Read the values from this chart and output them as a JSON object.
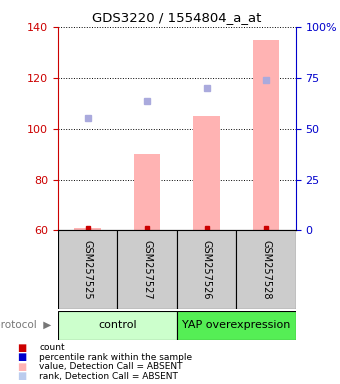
{
  "title": "GDS3220 / 1554804_a_at",
  "samples": [
    "GSM257525",
    "GSM257527",
    "GSM257526",
    "GSM257528"
  ],
  "bar_values": [
    61,
    90,
    105,
    135
  ],
  "bar_color": "#ffb3b3",
  "count_values": [
    61,
    61,
    61,
    61
  ],
  "count_color": "#cc0000",
  "rank_values": [
    104,
    111,
    116,
    119
  ],
  "rank_color": "#aaaadd",
  "ylim_left": [
    60,
    140
  ],
  "ylim_right": [
    0,
    100
  ],
  "yticks_left": [
    60,
    80,
    100,
    120,
    140
  ],
  "yticks_right": [
    0,
    25,
    50,
    75,
    100
  ],
  "ytick_labels_right": [
    "0",
    "25",
    "50",
    "75",
    "100%"
  ],
  "left_axis_color": "#cc0000",
  "right_axis_color": "#0000cc",
  "title_fontsize": 9.5,
  "sample_label_fontsize": 7,
  "group_label_fontsize": 8,
  "groups_info": [
    {
      "label": "control",
      "start": 0,
      "end": 2,
      "color": "#ccffcc"
    },
    {
      "label": "YAP overexpression",
      "start": 2,
      "end": 4,
      "color": "#55ee55"
    }
  ],
  "legend_items": [
    {
      "color": "#cc0000",
      "label": "count"
    },
    {
      "color": "#0000cc",
      "label": "percentile rank within the sample"
    },
    {
      "color": "#ffb3b3",
      "label": "value, Detection Call = ABSENT"
    },
    {
      "color": "#bbccee",
      "label": "rank, Detection Call = ABSENT"
    }
  ],
  "bar_width": 0.45,
  "background_color": "#ffffff"
}
